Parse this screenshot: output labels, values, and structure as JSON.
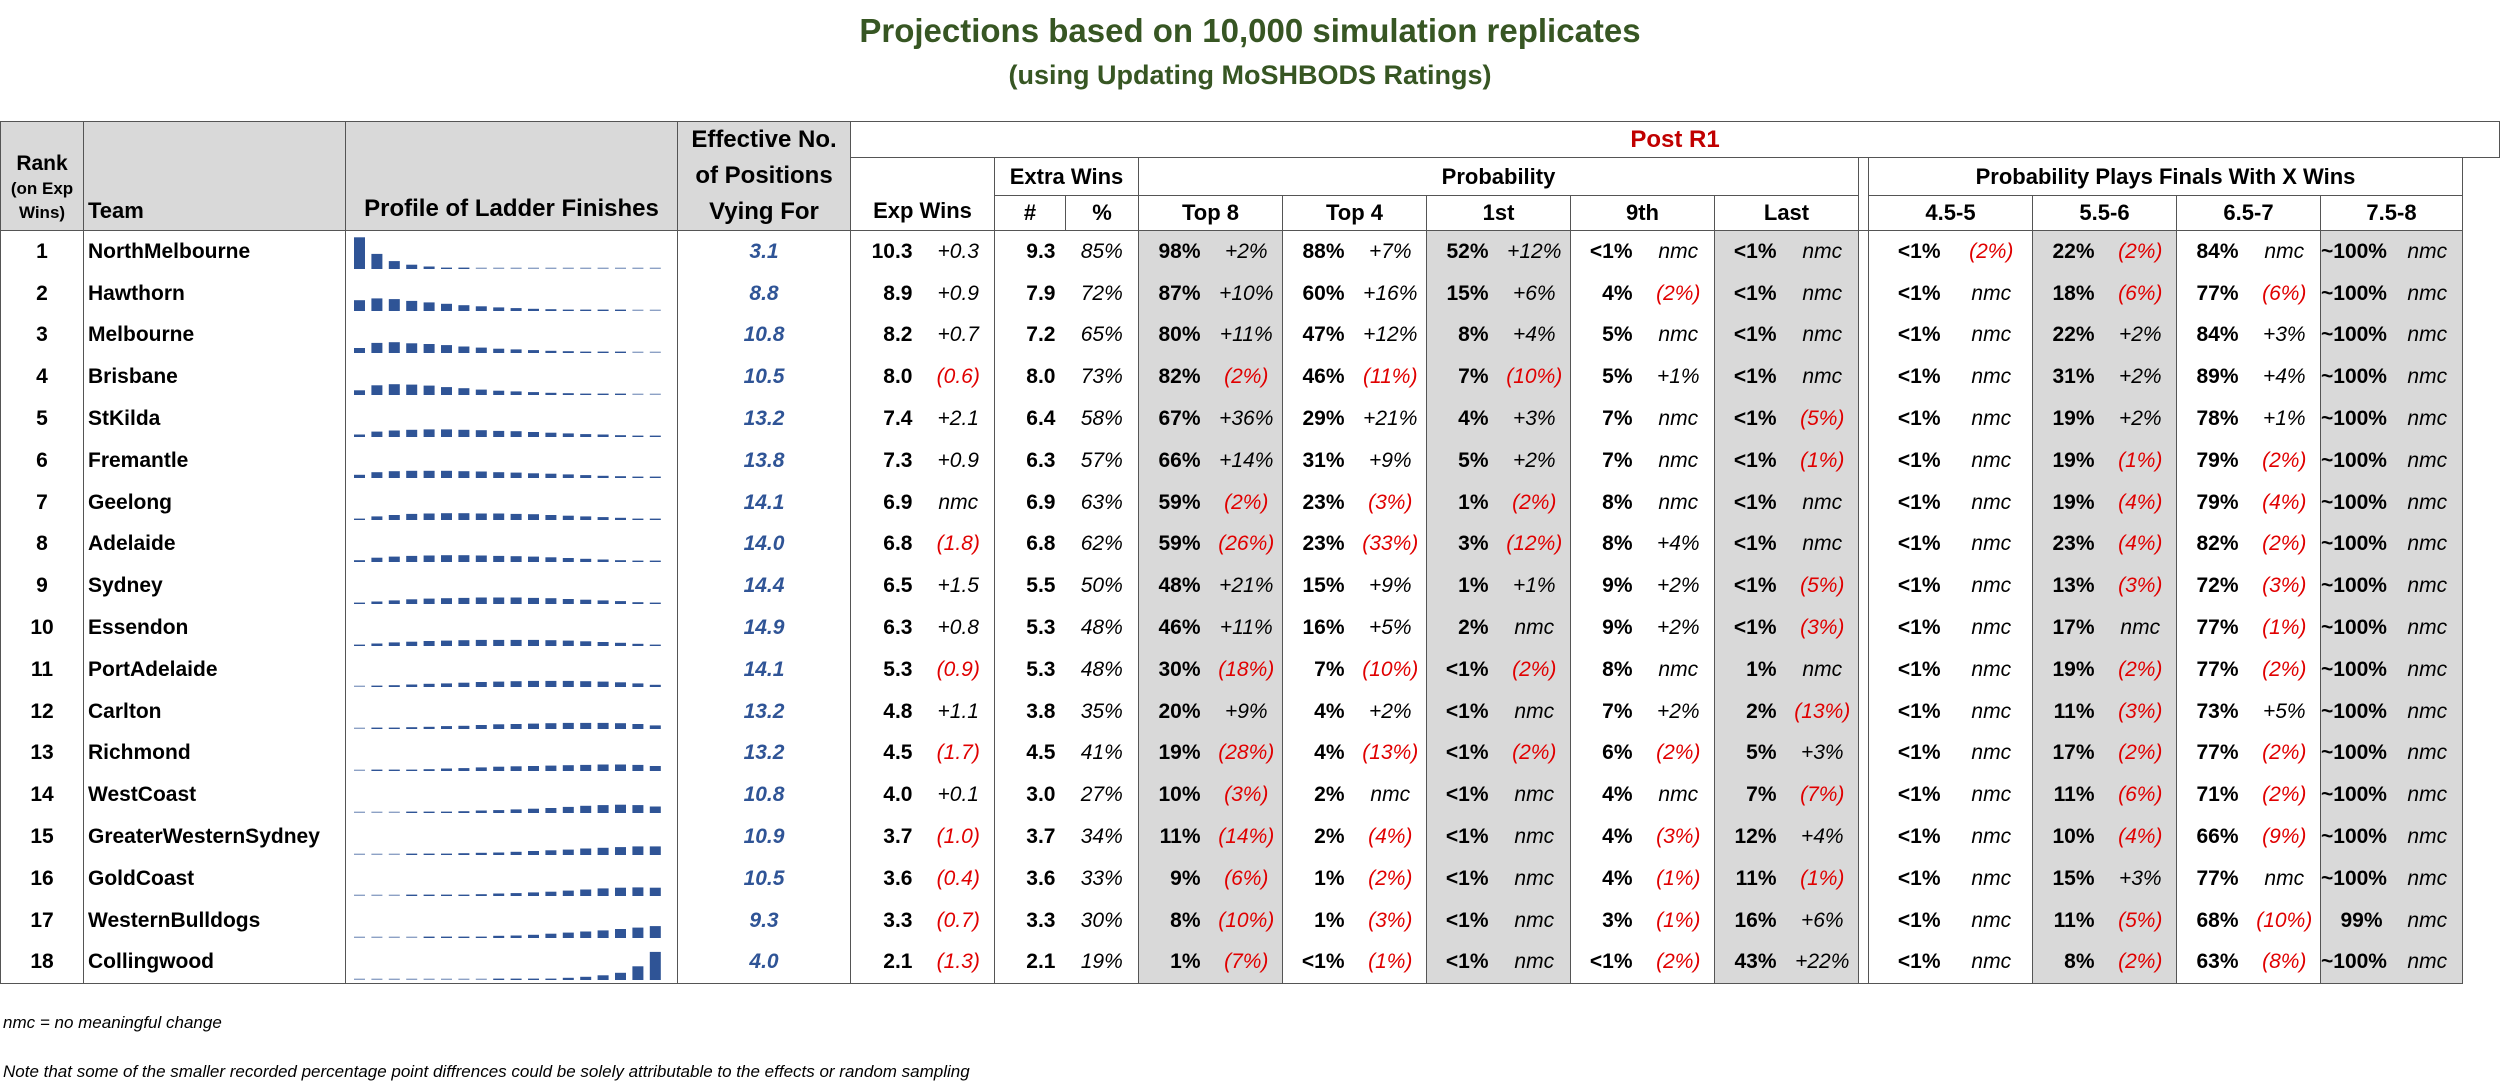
{
  "title": "Projections based on 10,000 simulation replicates",
  "subtitle": "(using Updating MoSHBODS Ratings)",
  "headers": {
    "rank_line1": "Rank",
    "rank_line2": "(on Exp",
    "rank_line3": "Wins)",
    "team": "Team",
    "profile": "Profile of Ladder Finishes",
    "effective_line1": "Effective No.",
    "effective_line2": "of Positions",
    "effective_line3": "Vying For",
    "post": "Post R1",
    "exp_wins": "Exp Wins",
    "extra_wins": "Extra Wins",
    "extra_num": "#",
    "extra_pct": "%",
    "probability": "Probability",
    "top8": "Top 8",
    "top4": "Top 4",
    "first": "1st",
    "ninth": "9th",
    "last": "Last",
    "finals_prob": "Probability Plays Finals With X Wins",
    "w45": "4.5-5",
    "w556": "5.5-6",
    "w657": "6.5-7",
    "w758": "7.5-8"
  },
  "colors": {
    "title": "#375623",
    "post": "#c00000",
    "effective": "#2f5496",
    "negative": "#e00000",
    "bar": "#2f5496",
    "shade": "#d9d9d9"
  },
  "footnote1": "nmc = no meaningful change",
  "footnote2": "Note that some of the smaller recorded percentage point diffrences could be solely attributable to the effects or random sampling",
  "chart_data": {
    "type": "table",
    "rows": [
      {
        "rank": "1",
        "team": "NorthMelbourne",
        "eff": "3.1",
        "exp": "10.3",
        "exp_d": "+0.3",
        "ew": "9.3",
        "ewp": "85%",
        "top8": "98%",
        "top8_d": "+2%",
        "top4": "88%",
        "top4_d": "+7%",
        "first": "52%",
        "first_d": "+12%",
        "ninth": "<1%",
        "ninth_d": "nmc",
        "last": "<1%",
        "last_d": "nmc",
        "w45": "<1%",
        "w45_d": "(2%)",
        "w556": "22%",
        "w556_d": "(2%)",
        "w657": "84%",
        "w657_d": "nmc",
        "w758": "~100%",
        "w758_d": "nmc",
        "profile": [
          0.88,
          0.42,
          0.22,
          0.12,
          0.07,
          0.04,
          0.02,
          0.01,
          0.01,
          0.01,
          0,
          0,
          0,
          0,
          0,
          0,
          0,
          0
        ]
      },
      {
        "rank": "2",
        "team": "Hawthorn",
        "eff": "8.8",
        "exp": "8.9",
        "exp_d": "+0.9",
        "ew": "7.9",
        "ewp": "72%",
        "top8": "87%",
        "top8_d": "+10%",
        "top4": "60%",
        "top4_d": "+16%",
        "first": "15%",
        "first_d": "+6%",
        "ninth": "4%",
        "ninth_d": "(2%)",
        "last": "<1%",
        "last_d": "nmc",
        "w45": "<1%",
        "w45_d": "nmc",
        "w556": "18%",
        "w556_d": "(6%)",
        "w657": "77%",
        "w657_d": "(6%)",
        "w758": "~100%",
        "w758_d": "nmc",
        "profile": [
          0.3,
          0.35,
          0.33,
          0.28,
          0.24,
          0.2,
          0.16,
          0.13,
          0.1,
          0.08,
          0.06,
          0.05,
          0.04,
          0.03,
          0.02,
          0.02,
          0.01,
          0.01
        ]
      },
      {
        "rank": "3",
        "team": "Melbourne",
        "eff": "10.8",
        "exp": "8.2",
        "exp_d": "+0.7",
        "ew": "7.2",
        "ewp": "65%",
        "top8": "80%",
        "top8_d": "+11%",
        "top4": "47%",
        "top4_d": "+12%",
        "first": "8%",
        "first_d": "+4%",
        "ninth": "5%",
        "ninth_d": "nmc",
        "last": "<1%",
        "last_d": "nmc",
        "w45": "<1%",
        "w45_d": "nmc",
        "w556": "22%",
        "w556_d": "+2%",
        "w657": "84%",
        "w657_d": "+3%",
        "w758": "~100%",
        "w758_d": "nmc",
        "profile": [
          0.14,
          0.28,
          0.3,
          0.27,
          0.25,
          0.22,
          0.18,
          0.15,
          0.12,
          0.1,
          0.08,
          0.06,
          0.05,
          0.04,
          0.03,
          0.02,
          0.01,
          0.01
        ]
      },
      {
        "rank": "4",
        "team": "Brisbane",
        "eff": "10.5",
        "exp": "8.0",
        "exp_d": "(0.6)",
        "ew": "8.0",
        "ewp": "73%",
        "top8": "82%",
        "top8_d": "(2%)",
        "top4": "46%",
        "top4_d": "(11%)",
        "first": "7%",
        "first_d": "(10%)",
        "ninth": "5%",
        "ninth_d": "+1%",
        "last": "<1%",
        "last_d": "nmc",
        "w45": "<1%",
        "w45_d": "nmc",
        "w556": "31%",
        "w556_d": "+2%",
        "w657": "89%",
        "w657_d": "+4%",
        "w758": "~100%",
        "w758_d": "nmc",
        "profile": [
          0.13,
          0.27,
          0.3,
          0.29,
          0.26,
          0.22,
          0.19,
          0.15,
          0.12,
          0.1,
          0.08,
          0.06,
          0.05,
          0.03,
          0.02,
          0.02,
          0.01,
          0.01
        ]
      },
      {
        "rank": "5",
        "team": "StKilda",
        "eff": "13.2",
        "exp": "7.4",
        "exp_d": "+2.1",
        "ew": "6.4",
        "ewp": "58%",
        "top8": "67%",
        "top8_d": "+36%",
        "top4": "29%",
        "top4_d": "+21%",
        "first": "4%",
        "first_d": "+3%",
        "ninth": "7%",
        "ninth_d": "nmc",
        "last": "<1%",
        "last_d": "(5%)",
        "w45": "<1%",
        "w45_d": "nmc",
        "w556": "19%",
        "w556_d": "+2%",
        "w657": "78%",
        "w657_d": "+1%",
        "w758": "~100%",
        "w758_d": "nmc",
        "profile": [
          0.07,
          0.15,
          0.18,
          0.2,
          0.21,
          0.21,
          0.2,
          0.19,
          0.17,
          0.16,
          0.14,
          0.12,
          0.1,
          0.08,
          0.07,
          0.05,
          0.03,
          0.02
        ]
      },
      {
        "rank": "6",
        "team": "Fremantle",
        "eff": "13.8",
        "exp": "7.3",
        "exp_d": "+0.9",
        "ew": "6.3",
        "ewp": "57%",
        "top8": "66%",
        "top8_d": "+14%",
        "top4": "31%",
        "top4_d": "+9%",
        "first": "5%",
        "first_d": "+2%",
        "ninth": "7%",
        "ninth_d": "nmc",
        "last": "<1%",
        "last_d": "(1%)",
        "w45": "<1%",
        "w45_d": "nmc",
        "w556": "19%",
        "w556_d": "(1%)",
        "w657": "79%",
        "w657_d": "(2%)",
        "w758": "~100%",
        "w758_d": "nmc",
        "profile": [
          0.09,
          0.16,
          0.19,
          0.2,
          0.2,
          0.2,
          0.19,
          0.18,
          0.16,
          0.15,
          0.13,
          0.12,
          0.1,
          0.08,
          0.06,
          0.05,
          0.03,
          0.02
        ]
      },
      {
        "rank": "7",
        "team": "Geelong",
        "eff": "14.1",
        "exp": "6.9",
        "exp_d": "nmc",
        "ew": "6.9",
        "ewp": "63%",
        "top8": "59%",
        "top8_d": "(2%)",
        "top4": "23%",
        "top4_d": "(3%)",
        "first": "1%",
        "first_d": "(2%)",
        "ninth": "8%",
        "ninth_d": "nmc",
        "last": "<1%",
        "last_d": "nmc",
        "w45": "<1%",
        "w45_d": "nmc",
        "w556": "19%",
        "w556_d": "(4%)",
        "w657": "79%",
        "w657_d": "(4%)",
        "w758": "~100%",
        "w758_d": "nmc",
        "profile": [
          0.03,
          0.1,
          0.14,
          0.17,
          0.18,
          0.19,
          0.19,
          0.18,
          0.18,
          0.17,
          0.16,
          0.14,
          0.12,
          0.1,
          0.08,
          0.06,
          0.04,
          0.02
        ]
      },
      {
        "rank": "8",
        "team": "Adelaide",
        "eff": "14.0",
        "exp": "6.8",
        "exp_d": "(1.8)",
        "ew": "6.8",
        "ewp": "62%",
        "top8": "59%",
        "top8_d": "(26%)",
        "top4": "23%",
        "top4_d": "(33%)",
        "first": "3%",
        "first_d": "(12%)",
        "ninth": "8%",
        "ninth_d": "+4%",
        "last": "<1%",
        "last_d": "nmc",
        "w45": "<1%",
        "w45_d": "nmc",
        "w556": "23%",
        "w556_d": "(4%)",
        "w657": "82%",
        "w657_d": "(2%)",
        "w758": "~100%",
        "w758_d": "nmc",
        "profile": [
          0.05,
          0.12,
          0.15,
          0.17,
          0.18,
          0.19,
          0.19,
          0.18,
          0.17,
          0.16,
          0.15,
          0.13,
          0.11,
          0.09,
          0.07,
          0.05,
          0.04,
          0.02
        ]
      },
      {
        "rank": "9",
        "team": "Sydney",
        "eff": "14.4",
        "exp": "6.5",
        "exp_d": "+1.5",
        "ew": "5.5",
        "ewp": "50%",
        "top8": "48%",
        "top8_d": "+21%",
        "top4": "15%",
        "top4_d": "+9%",
        "first": "1%",
        "first_d": "+1%",
        "ninth": "9%",
        "ninth_d": "+2%",
        "last": "<1%",
        "last_d": "(5%)",
        "w45": "<1%",
        "w45_d": "nmc",
        "w556": "13%",
        "w556_d": "(3%)",
        "w657": "72%",
        "w657_d": "(3%)",
        "w758": "~100%",
        "w758_d": "nmc",
        "profile": [
          0.02,
          0.07,
          0.1,
          0.13,
          0.15,
          0.16,
          0.17,
          0.18,
          0.18,
          0.18,
          0.17,
          0.16,
          0.14,
          0.12,
          0.1,
          0.08,
          0.05,
          0.03
        ]
      },
      {
        "rank": "10",
        "team": "Essendon",
        "eff": "14.9",
        "exp": "6.3",
        "exp_d": "+0.8",
        "ew": "5.3",
        "ewp": "48%",
        "top8": "46%",
        "top8_d": "+11%",
        "top4": "16%",
        "top4_d": "+5%",
        "first": "2%",
        "first_d": "nmc",
        "ninth": "9%",
        "ninth_d": "+2%",
        "last": "<1%",
        "last_d": "(3%)",
        "w45": "<1%",
        "w45_d": "nmc",
        "w556": "17%",
        "w556_d": "nmc",
        "w657": "77%",
        "w657_d": "(1%)",
        "w758": "~100%",
        "w758_d": "nmc",
        "profile": [
          0.03,
          0.07,
          0.1,
          0.12,
          0.14,
          0.15,
          0.16,
          0.17,
          0.17,
          0.17,
          0.17,
          0.16,
          0.15,
          0.13,
          0.11,
          0.09,
          0.06,
          0.04
        ]
      },
      {
        "rank": "11",
        "team": "PortAdelaide",
        "eff": "14.1",
        "exp": "5.3",
        "exp_d": "(0.9)",
        "ew": "5.3",
        "ewp": "48%",
        "top8": "30%",
        "top8_d": "(18%)",
        "top4": "7%",
        "top4_d": "(10%)",
        "first": "<1%",
        "first_d": "(2%)",
        "ninth": "8%",
        "ninth_d": "nmc",
        "last": "1%",
        "last_d": "nmc",
        "w45": "<1%",
        "w45_d": "nmc",
        "w556": "19%",
        "w556_d": "(2%)",
        "w657": "77%",
        "w657_d": "(2%)",
        "w758": "~100%",
        "w758_d": "nmc",
        "profile": [
          0.01,
          0.03,
          0.05,
          0.07,
          0.09,
          0.1,
          0.12,
          0.14,
          0.15,
          0.16,
          0.17,
          0.17,
          0.17,
          0.16,
          0.15,
          0.13,
          0.1,
          0.06
        ]
      },
      {
        "rank": "12",
        "team": "Carlton",
        "eff": "13.2",
        "exp": "4.8",
        "exp_d": "+1.1",
        "ew": "3.8",
        "ewp": "35%",
        "top8": "20%",
        "top8_d": "+9%",
        "top4": "4%",
        "top4_d": "+2%",
        "first": "<1%",
        "first_d": "nmc",
        "ninth": "7%",
        "ninth_d": "+2%",
        "last": "2%",
        "last_d": "(13%)",
        "w45": "<1%",
        "w45_d": "nmc",
        "w556": "11%",
        "w556_d": "(3%)",
        "w657": "73%",
        "w657_d": "+5%",
        "w758": "~100%",
        "w758_d": "nmc",
        "profile": [
          0.01,
          0.02,
          0.03,
          0.05,
          0.06,
          0.08,
          0.09,
          0.11,
          0.13,
          0.14,
          0.15,
          0.16,
          0.17,
          0.17,
          0.17,
          0.16,
          0.14,
          0.1
        ]
      },
      {
        "rank": "13",
        "team": "Richmond",
        "eff": "13.2",
        "exp": "4.5",
        "exp_d": "(1.7)",
        "ew": "4.5",
        "ewp": "41%",
        "top8": "19%",
        "top8_d": "(28%)",
        "top4": "4%",
        "top4_d": "(13%)",
        "first": "<1%",
        "first_d": "(2%)",
        "ninth": "6%",
        "ninth_d": "(2%)",
        "last": "5%",
        "last_d": "+3%",
        "w45": "<1%",
        "w45_d": "nmc",
        "w556": "17%",
        "w556_d": "(2%)",
        "w657": "77%",
        "w657_d": "(2%)",
        "w758": "~100%",
        "w758_d": "nmc",
        "profile": [
          0.01,
          0.02,
          0.03,
          0.04,
          0.05,
          0.07,
          0.08,
          0.1,
          0.12,
          0.13,
          0.14,
          0.15,
          0.16,
          0.17,
          0.18,
          0.18,
          0.17,
          0.14
        ]
      },
      {
        "rank": "14",
        "team": "WestCoast",
        "eff": "10.8",
        "exp": "4.0",
        "exp_d": "+0.1",
        "ew": "3.0",
        "ewp": "27%",
        "top8": "10%",
        "top8_d": "(3%)",
        "top4": "2%",
        "top4_d": "nmc",
        "first": "<1%",
        "first_d": "nmc",
        "ninth": "4%",
        "ninth_d": "nmc",
        "last": "7%",
        "last_d": "(7%)",
        "w45": "<1%",
        "w45_d": "nmc",
        "w556": "11%",
        "w556_d": "(6%)",
        "w657": "71%",
        "w657_d": "(2%)",
        "w758": "~100%",
        "w758_d": "nmc",
        "profile": [
          0,
          0.01,
          0.01,
          0.02,
          0.03,
          0.04,
          0.05,
          0.07,
          0.08,
          0.1,
          0.12,
          0.14,
          0.17,
          0.2,
          0.22,
          0.23,
          0.22,
          0.18
        ]
      },
      {
        "rank": "15",
        "team": "GreaterWesternSydney",
        "eff": "10.9",
        "exp": "3.7",
        "exp_d": "(1.0)",
        "ew": "3.7",
        "ewp": "34%",
        "top8": "11%",
        "top8_d": "(14%)",
        "top4": "2%",
        "top4_d": "(4%)",
        "first": "<1%",
        "first_d": "nmc",
        "ninth": "4%",
        "ninth_d": "(3%)",
        "last": "12%",
        "last_d": "+4%",
        "w45": "<1%",
        "w45_d": "nmc",
        "w556": "10%",
        "w556_d": "(4%)",
        "w657": "66%",
        "w657_d": "(9%)",
        "w758": "~100%",
        "w758_d": "nmc",
        "profile": [
          0,
          0.01,
          0.01,
          0.02,
          0.03,
          0.04,
          0.05,
          0.06,
          0.07,
          0.09,
          0.11,
          0.13,
          0.15,
          0.18,
          0.2,
          0.22,
          0.24,
          0.24
        ]
      },
      {
        "rank": "16",
        "team": "GoldCoast",
        "eff": "10.5",
        "exp": "3.6",
        "exp_d": "(0.4)",
        "ew": "3.6",
        "ewp": "33%",
        "top8": "9%",
        "top8_d": "(6%)",
        "top4": "1%",
        "top4_d": "(2%)",
        "first": "<1%",
        "first_d": "nmc",
        "ninth": "4%",
        "ninth_d": "(1%)",
        "last": "11%",
        "last_d": "(1%)",
        "w45": "<1%",
        "w45_d": "nmc",
        "w556": "15%",
        "w556_d": "+3%",
        "w657": "77%",
        "w657_d": "nmc",
        "w758": "~100%",
        "w758_d": "nmc",
        "profile": [
          0,
          0.01,
          0.01,
          0.02,
          0.02,
          0.03,
          0.04,
          0.05,
          0.07,
          0.08,
          0.1,
          0.12,
          0.15,
          0.18,
          0.21,
          0.23,
          0.24,
          0.23
        ]
      },
      {
        "rank": "17",
        "team": "WesternBulldogs",
        "eff": "9.3",
        "exp": "3.3",
        "exp_d": "(0.7)",
        "ew": "3.3",
        "ewp": "30%",
        "top8": "8%",
        "top8_d": "(10%)",
        "top4": "1%",
        "top4_d": "(3%)",
        "first": "<1%",
        "first_d": "nmc",
        "ninth": "3%",
        "ninth_d": "(1%)",
        "last": "16%",
        "last_d": "+6%",
        "w45": "<1%",
        "w45_d": "nmc",
        "w556": "11%",
        "w556_d": "(5%)",
        "w657": "68%",
        "w657_d": "(10%)",
        "w758": "99%",
        "w758_d": "nmc",
        "profile": [
          0,
          0,
          0.01,
          0.01,
          0.02,
          0.02,
          0.03,
          0.04,
          0.06,
          0.07,
          0.09,
          0.12,
          0.15,
          0.18,
          0.21,
          0.25,
          0.29,
          0.33
        ]
      },
      {
        "rank": "18",
        "team": "Collingwood",
        "eff": "4.0",
        "exp": "2.1",
        "exp_d": "(1.3)",
        "ew": "2.1",
        "ewp": "19%",
        "top8": "1%",
        "top8_d": "(7%)",
        "top4": "<1%",
        "top4_d": "(1%)",
        "first": "<1%",
        "first_d": "nmc",
        "ninth": "<1%",
        "ninth_d": "(2%)",
        "last": "43%",
        "last_d": "+22%",
        "w45": "<1%",
        "w45_d": "nmc",
        "w556": "8%",
        "w556_d": "(2%)",
        "w657": "63%",
        "w657_d": "(8%)",
        "w758": "~100%",
        "w758_d": "nmc",
        "profile": [
          0,
          0,
          0,
          0,
          0,
          0.01,
          0.01,
          0.01,
          0.02,
          0.02,
          0.03,
          0.04,
          0.06,
          0.09,
          0.13,
          0.2,
          0.38,
          0.78
        ]
      }
    ]
  }
}
